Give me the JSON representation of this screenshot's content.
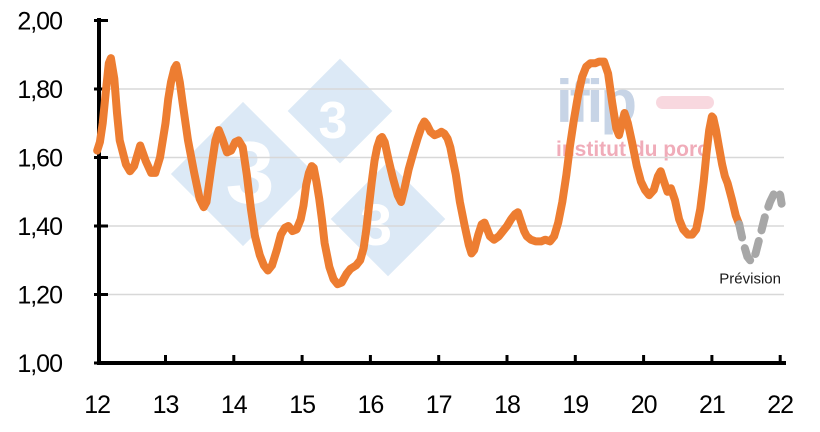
{
  "chart_data": {
    "type": "line",
    "title": "",
    "x_axis": {
      "range": [
        12,
        22.05
      ],
      "ticks": [
        {
          "label": "12",
          "value": 12
        },
        {
          "label": "13",
          "value": 13
        },
        {
          "label": "14",
          "value": 14
        },
        {
          "label": "15",
          "value": 15
        },
        {
          "label": "16",
          "value": 16
        },
        {
          "label": "17",
          "value": 17
        },
        {
          "label": "18",
          "value": 18
        },
        {
          "label": "19",
          "value": 19
        },
        {
          "label": "20",
          "value": 20
        },
        {
          "label": "21",
          "value": 21
        },
        {
          "label": "22",
          "value": 22
        }
      ]
    },
    "y_axis": {
      "range": [
        1.0,
        2.0
      ],
      "ticks": [
        {
          "label": "1,00",
          "value": 1.0
        },
        {
          "label": "1,20",
          "value": 1.2
        },
        {
          "label": "1,40",
          "value": 1.4
        },
        {
          "label": "1,60",
          "value": 1.6
        },
        {
          "label": "1,80",
          "value": 1.8
        },
        {
          "label": "2,00",
          "value": 2.0
        }
      ]
    },
    "grid": {
      "color": "#d8d8d8",
      "lines_at": [
        1.2,
        1.4,
        1.6,
        1.8
      ]
    },
    "series": [
      {
        "name": "price-actual",
        "style": "solid",
        "color": "#ED7D31",
        "width": 8,
        "points": [
          [
            12.0,
            1.62
          ],
          [
            12.04,
            1.645
          ],
          [
            12.08,
            1.7
          ],
          [
            12.13,
            1.8
          ],
          [
            12.17,
            1.875
          ],
          [
            12.2,
            1.89
          ],
          [
            12.25,
            1.83
          ],
          [
            12.29,
            1.73
          ],
          [
            12.33,
            1.65
          ],
          [
            12.42,
            1.58
          ],
          [
            12.48,
            1.56
          ],
          [
            12.54,
            1.575
          ],
          [
            12.63,
            1.635
          ],
          [
            12.71,
            1.59
          ],
          [
            12.79,
            1.555
          ],
          [
            12.85,
            1.555
          ],
          [
            12.92,
            1.6
          ],
          [
            13.0,
            1.7
          ],
          [
            13.04,
            1.77
          ],
          [
            13.08,
            1.82
          ],
          [
            13.13,
            1.86
          ],
          [
            13.16,
            1.87
          ],
          [
            13.21,
            1.82
          ],
          [
            13.25,
            1.76
          ],
          [
            13.33,
            1.65
          ],
          [
            13.42,
            1.555
          ],
          [
            13.5,
            1.48
          ],
          [
            13.56,
            1.455
          ],
          [
            13.6,
            1.47
          ],
          [
            13.67,
            1.57
          ],
          [
            13.73,
            1.65
          ],
          [
            13.78,
            1.68
          ],
          [
            13.83,
            1.655
          ],
          [
            13.9,
            1.615
          ],
          [
            13.96,
            1.62
          ],
          [
            14.02,
            1.645
          ],
          [
            14.07,
            1.65
          ],
          [
            14.13,
            1.63
          ],
          [
            14.19,
            1.55
          ],
          [
            14.25,
            1.45
          ],
          [
            14.31,
            1.37
          ],
          [
            14.38,
            1.315
          ],
          [
            14.44,
            1.285
          ],
          [
            14.5,
            1.27
          ],
          [
            14.56,
            1.285
          ],
          [
            14.63,
            1.33
          ],
          [
            14.69,
            1.375
          ],
          [
            14.75,
            1.395
          ],
          [
            14.8,
            1.4
          ],
          [
            14.86,
            1.385
          ],
          [
            14.92,
            1.39
          ],
          [
            14.98,
            1.42
          ],
          [
            15.02,
            1.46
          ],
          [
            15.06,
            1.52
          ],
          [
            15.1,
            1.555
          ],
          [
            15.14,
            1.575
          ],
          [
            15.17,
            1.57
          ],
          [
            15.21,
            1.53
          ],
          [
            15.25,
            1.48
          ],
          [
            15.29,
            1.42
          ],
          [
            15.33,
            1.35
          ],
          [
            15.4,
            1.28
          ],
          [
            15.46,
            1.245
          ],
          [
            15.52,
            1.23
          ],
          [
            15.58,
            1.235
          ],
          [
            15.65,
            1.26
          ],
          [
            15.71,
            1.275
          ],
          [
            15.79,
            1.285
          ],
          [
            15.85,
            1.3
          ],
          [
            15.9,
            1.335
          ],
          [
            15.94,
            1.39
          ],
          [
            15.98,
            1.46
          ],
          [
            16.02,
            1.53
          ],
          [
            16.06,
            1.59
          ],
          [
            16.1,
            1.63
          ],
          [
            16.14,
            1.655
          ],
          [
            16.17,
            1.66
          ],
          [
            16.21,
            1.645
          ],
          [
            16.27,
            1.59
          ],
          [
            16.33,
            1.54
          ],
          [
            16.4,
            1.49
          ],
          [
            16.45,
            1.47
          ],
          [
            16.5,
            1.51
          ],
          [
            16.56,
            1.565
          ],
          [
            16.63,
            1.615
          ],
          [
            16.69,
            1.655
          ],
          [
            16.75,
            1.69
          ],
          [
            16.79,
            1.705
          ],
          [
            16.83,
            1.695
          ],
          [
            16.88,
            1.675
          ],
          [
            16.94,
            1.665
          ],
          [
            17.0,
            1.67
          ],
          [
            17.04,
            1.675
          ],
          [
            17.08,
            1.67
          ],
          [
            17.13,
            1.655
          ],
          [
            17.17,
            1.63
          ],
          [
            17.21,
            1.59
          ],
          [
            17.25,
            1.55
          ],
          [
            17.31,
            1.47
          ],
          [
            17.38,
            1.4
          ],
          [
            17.44,
            1.345
          ],
          [
            17.48,
            1.32
          ],
          [
            17.52,
            1.33
          ],
          [
            17.58,
            1.375
          ],
          [
            17.63,
            1.405
          ],
          [
            17.67,
            1.41
          ],
          [
            17.71,
            1.39
          ],
          [
            17.75,
            1.37
          ],
          [
            17.81,
            1.36
          ],
          [
            17.88,
            1.37
          ],
          [
            17.94,
            1.385
          ],
          [
            18.0,
            1.4
          ],
          [
            18.06,
            1.42
          ],
          [
            18.12,
            1.435
          ],
          [
            18.16,
            1.44
          ],
          [
            18.21,
            1.41
          ],
          [
            18.25,
            1.385
          ],
          [
            18.29,
            1.37
          ],
          [
            18.35,
            1.36
          ],
          [
            18.42,
            1.355
          ],
          [
            18.5,
            1.355
          ],
          [
            18.56,
            1.36
          ],
          [
            18.63,
            1.355
          ],
          [
            18.69,
            1.37
          ],
          [
            18.75,
            1.41
          ],
          [
            18.81,
            1.47
          ],
          [
            18.87,
            1.55
          ],
          [
            18.92,
            1.63
          ],
          [
            18.98,
            1.71
          ],
          [
            19.04,
            1.78
          ],
          [
            19.1,
            1.835
          ],
          [
            19.16,
            1.865
          ],
          [
            19.22,
            1.875
          ],
          [
            19.29,
            1.875
          ],
          [
            19.35,
            1.88
          ],
          [
            19.42,
            1.88
          ],
          [
            19.48,
            1.845
          ],
          [
            19.54,
            1.76
          ],
          [
            19.6,
            1.685
          ],
          [
            19.64,
            1.665
          ],
          [
            19.69,
            1.705
          ],
          [
            19.72,
            1.73
          ],
          [
            19.77,
            1.7
          ],
          [
            19.83,
            1.645
          ],
          [
            19.9,
            1.575
          ],
          [
            19.96,
            1.53
          ],
          [
            20.02,
            1.505
          ],
          [
            20.08,
            1.49
          ],
          [
            20.15,
            1.505
          ],
          [
            20.21,
            1.545
          ],
          [
            20.25,
            1.56
          ],
          [
            20.29,
            1.535
          ],
          [
            20.35,
            1.5
          ],
          [
            20.4,
            1.51
          ],
          [
            20.46,
            1.475
          ],
          [
            20.52,
            1.42
          ],
          [
            20.58,
            1.39
          ],
          [
            20.65,
            1.375
          ],
          [
            20.71,
            1.375
          ],
          [
            20.77,
            1.39
          ],
          [
            20.83,
            1.45
          ],
          [
            20.88,
            1.53
          ],
          [
            20.92,
            1.61
          ],
          [
            20.96,
            1.68
          ],
          [
            21.0,
            1.72
          ],
          [
            21.02,
            1.715
          ],
          [
            21.06,
            1.68
          ],
          [
            21.1,
            1.635
          ],
          [
            21.15,
            1.58
          ],
          [
            21.19,
            1.545
          ],
          [
            21.23,
            1.525
          ],
          [
            21.29,
            1.48
          ],
          [
            21.35,
            1.43
          ],
          [
            21.4,
            1.405
          ]
        ]
      },
      {
        "name": "price-forecast",
        "style": "dashed",
        "color": "#a7a7a7",
        "width": 8,
        "points": [
          [
            21.4,
            1.405
          ],
          [
            21.46,
            1.35
          ],
          [
            21.52,
            1.31
          ],
          [
            21.58,
            1.295
          ],
          [
            21.64,
            1.32
          ],
          [
            21.71,
            1.375
          ],
          [
            21.78,
            1.43
          ],
          [
            21.85,
            1.47
          ],
          [
            21.91,
            1.495
          ],
          [
            21.96,
            1.505
          ],
          [
            22.0,
            1.49
          ],
          [
            22.02,
            1.465
          ]
        ]
      }
    ],
    "annotation": {
      "text": "Prévision",
      "x": 21.56,
      "y": 1.247
    }
  },
  "watermarks": {
    "pig333": {
      "digits": [
        "3",
        "3",
        "3"
      ],
      "diamond_color": "#dce9f6",
      "digit_color": "#ffffff"
    },
    "ifip": {
      "name": "ifip",
      "subtitle": "institut du porc",
      "name_color": "#c7d4e6",
      "subtitle_color": "#f0acb9",
      "dash_color": "#f8d8df"
    }
  },
  "colors": {
    "line": "#ED7D31",
    "forecast": "#a7a7a7",
    "grid": "#d8d8d8",
    "axis": "#000000"
  }
}
